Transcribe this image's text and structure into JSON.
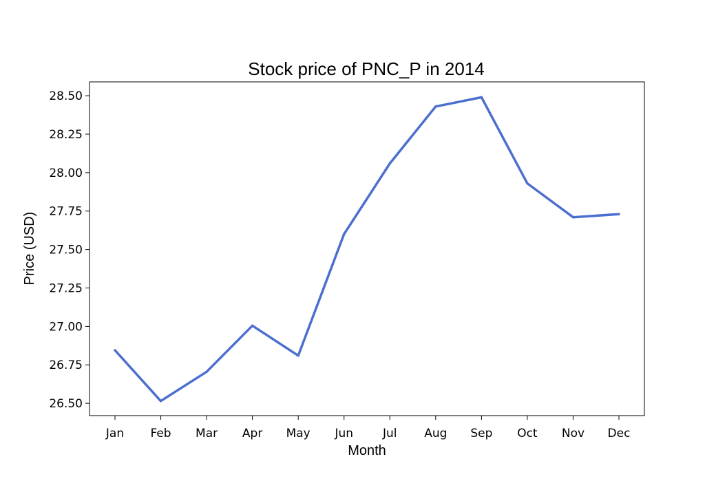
{
  "chart_data": {
    "type": "line",
    "title": "Stock price of PNC_P in 2014",
    "xlabel": "Month",
    "ylabel": "Price (USD)",
    "categories": [
      "Jan",
      "Feb",
      "Mar",
      "Apr",
      "May",
      "Jun",
      "Jul",
      "Aug",
      "Sep",
      "Oct",
      "Nov",
      "Dec"
    ],
    "series": [
      {
        "name": "",
        "color": "#4c6fcf",
        "values": [
          26.845,
          26.515,
          26.705,
          27.005,
          26.81,
          27.6,
          28.06,
          28.43,
          28.49,
          27.93,
          27.71,
          27.73
        ]
      }
    ],
    "yticks": [
      "26.50",
      "26.75",
      "27.00",
      "27.25",
      "27.50",
      "27.75",
      "28.00",
      "28.25",
      "28.50"
    ],
    "ylim": [
      26.42,
      28.59
    ],
    "grid": false,
    "legend": "none"
  }
}
